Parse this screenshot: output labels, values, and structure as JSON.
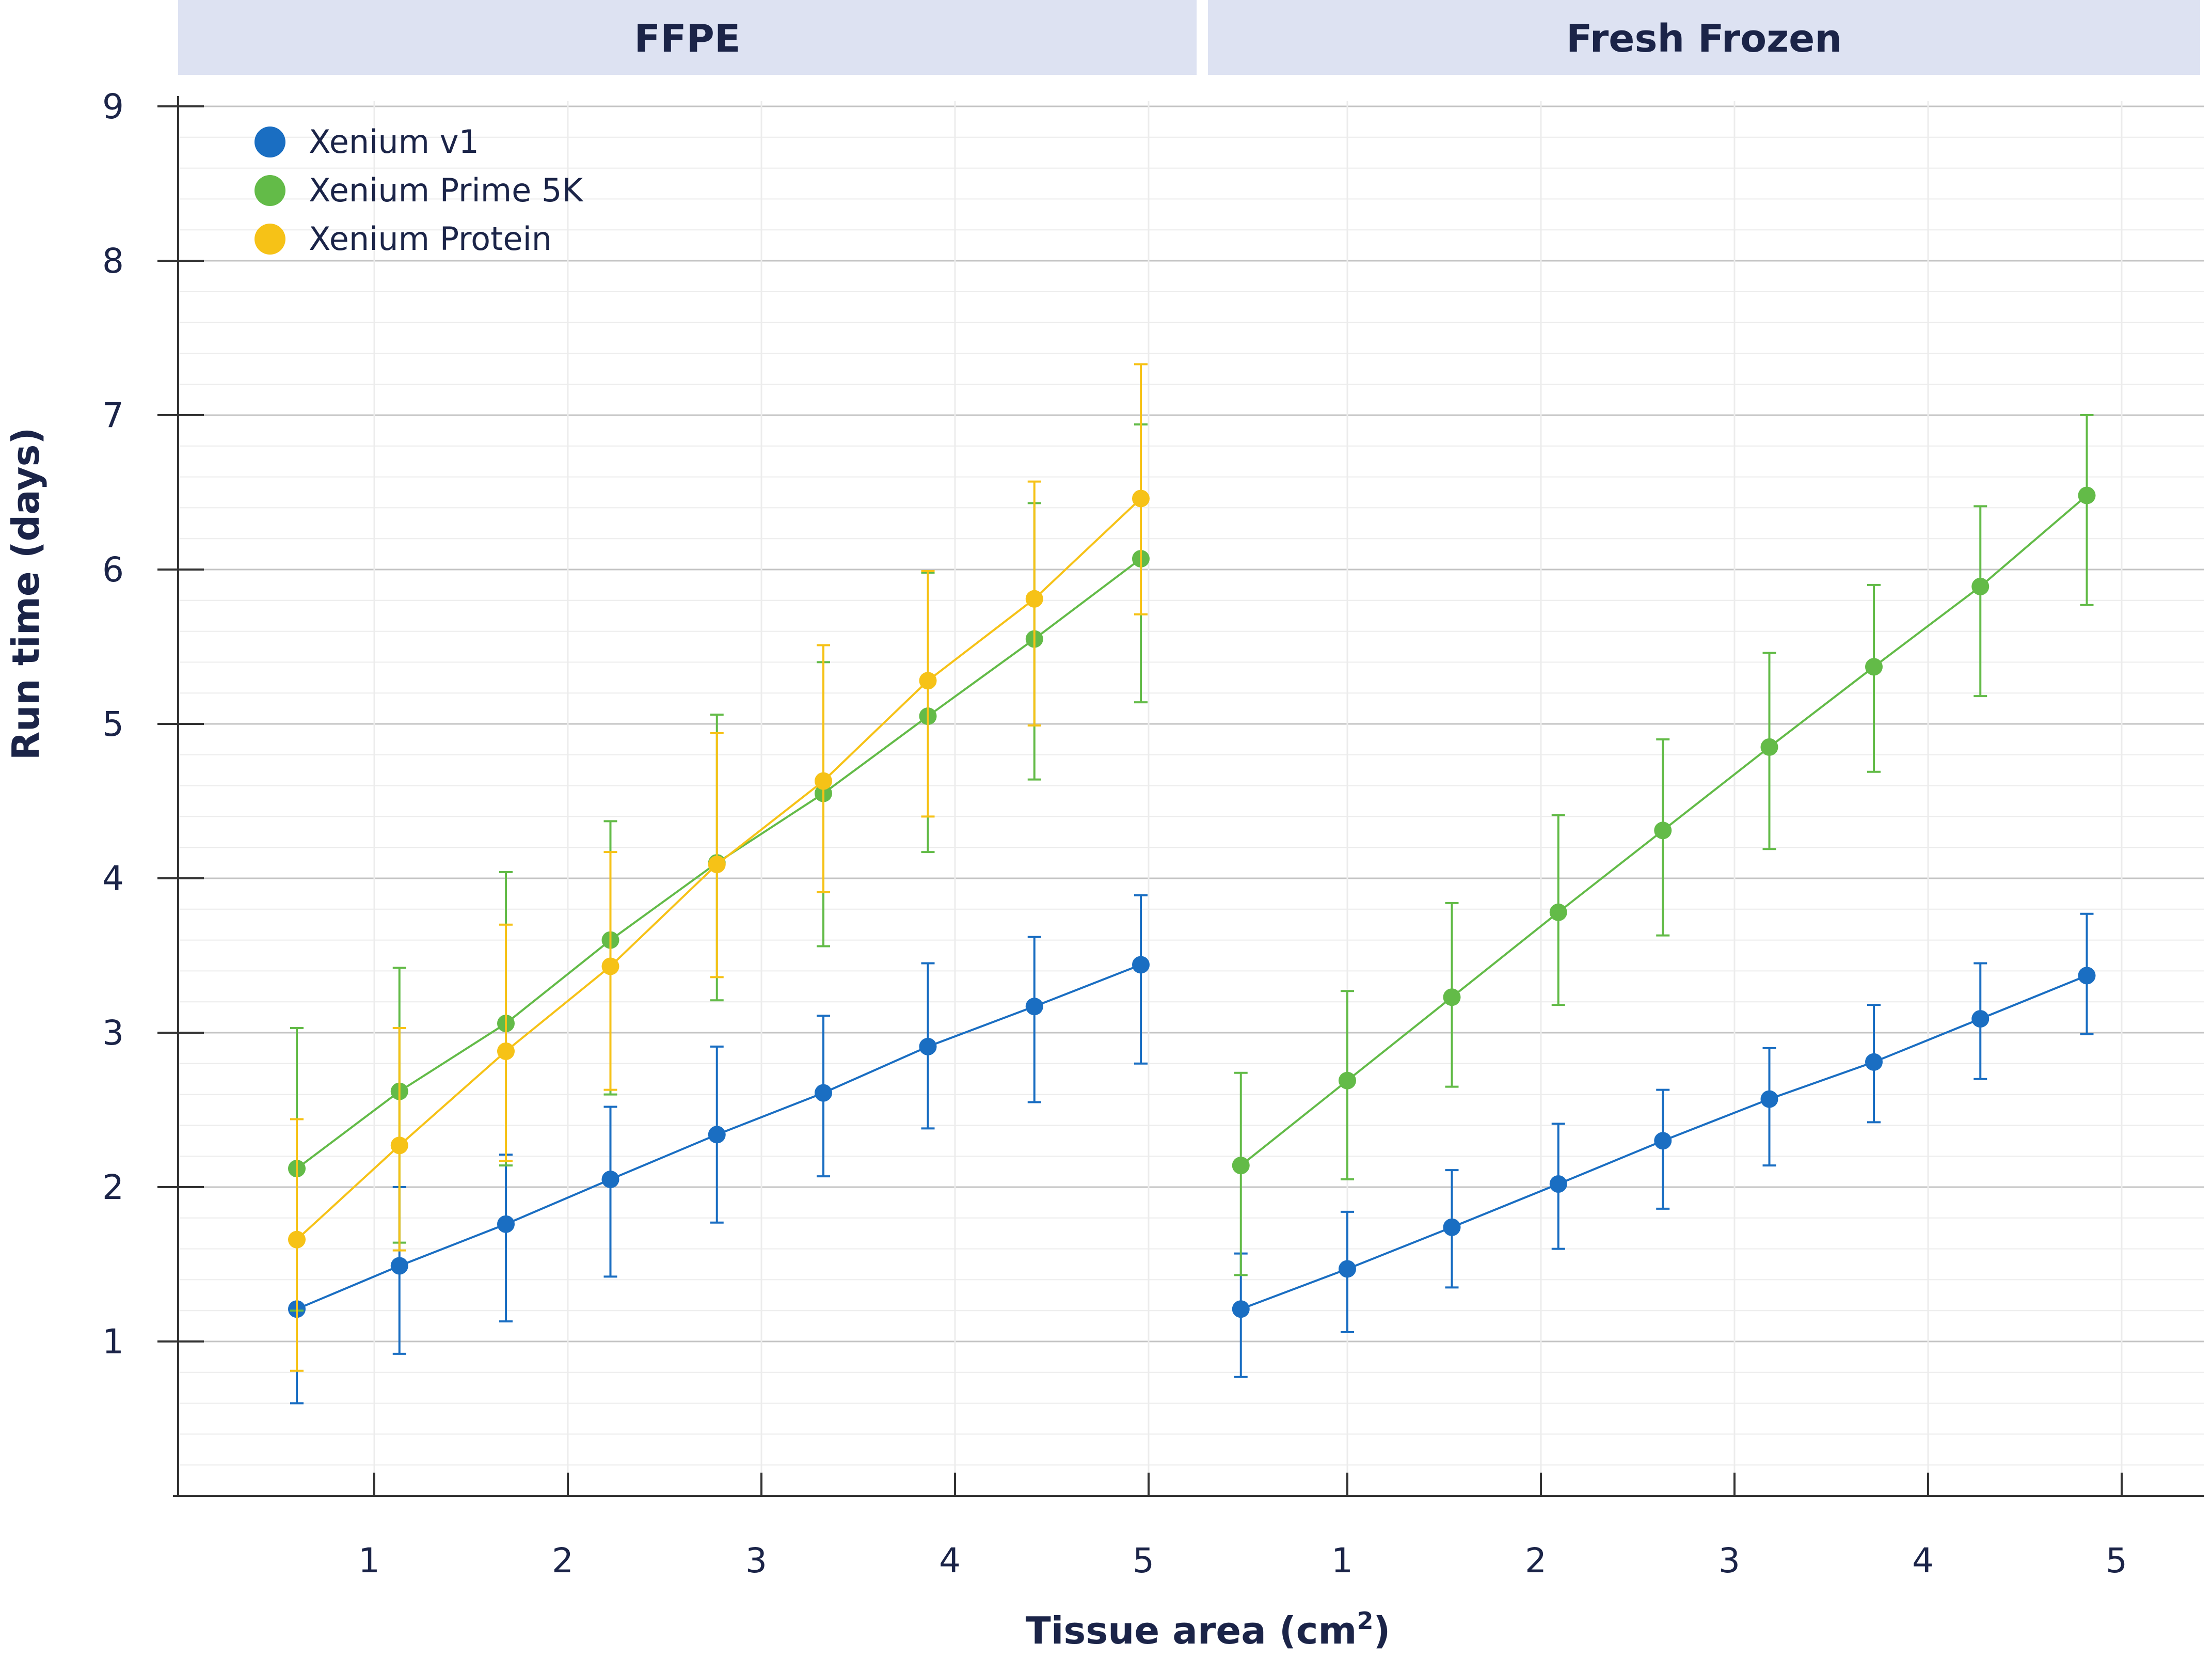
{
  "chart_data": {
    "type": "line",
    "ylabel": "Run time (days)",
    "xlabel": "Tissue area (cm",
    "xlabel_sup": "2",
    "xlabel_end": ")",
    "ylim": [
      0,
      9
    ],
    "yticks": [
      1,
      2,
      3,
      4,
      5,
      6,
      7,
      8,
      9
    ],
    "xticks": [
      1,
      2,
      3,
      4,
      5
    ],
    "grid": true,
    "legend_position": "top-left",
    "colors": {
      "xenium_v1": "#1a6ec2",
      "xenium_prime_5k": "#63bb48",
      "xenium_protein": "#f6c217",
      "panel_header": "#dde2f2",
      "text": "#1b2448"
    },
    "legend": [
      {
        "name": "Xenium v1",
        "color": "#1a6ec2"
      },
      {
        "name": "Xenium Prime 5K",
        "color": "#63bb48"
      },
      {
        "name": "Xenium Protein",
        "color": "#f6c217"
      }
    ],
    "panels": [
      {
        "title": "FFPE",
        "xlim": [
          0,
          5.4
        ],
        "series": [
          {
            "name": "Xenium v1",
            "color": "#1a6ec2",
            "x": [
              0.6,
              1.13,
              1.68,
              2.22,
              2.77,
              3.32,
              3.86,
              4.41,
              4.96
            ],
            "y": [
              1.21,
              1.49,
              1.76,
              2.05,
              2.34,
              2.61,
              2.91,
              3.17,
              3.44
            ],
            "err_low": [
              0.6,
              0.92,
              1.13,
              1.42,
              1.77,
              2.07,
              2.38,
              2.55,
              2.8
            ],
            "err_high": [
              1.2,
              2.0,
              2.21,
              2.52,
              2.91,
              3.11,
              3.45,
              3.62,
              3.89
            ]
          },
          {
            "name": "Xenium Prime 5K",
            "color": "#63bb48",
            "x": [
              0.6,
              1.13,
              1.68,
              2.22,
              2.77,
              3.32,
              3.86,
              4.41,
              4.96
            ],
            "y": [
              2.12,
              2.62,
              3.06,
              3.6,
              4.1,
              4.55,
              5.05,
              5.55,
              6.07
            ],
            "err_low": [
              1.2,
              1.64,
              2.14,
              2.6,
              3.21,
              3.56,
              4.17,
              4.64,
              5.14
            ],
            "err_high": [
              3.03,
              3.42,
              4.04,
              4.37,
              5.06,
              5.4,
              5.98,
              6.43,
              6.94
            ]
          },
          {
            "name": "Xenium Protein",
            "color": "#f6c217",
            "x": [
              0.6,
              1.13,
              1.68,
              2.22,
              2.77,
              3.32,
              3.86,
              4.41,
              4.96
            ],
            "y": [
              1.66,
              2.27,
              2.88,
              3.43,
              4.09,
              4.63,
              5.28,
              5.81,
              6.46
            ],
            "err_low": [
              0.81,
              1.59,
              2.17,
              2.63,
              3.36,
              3.91,
              4.4,
              4.99,
              5.71
            ],
            "err_high": [
              2.44,
              3.03,
              3.7,
              4.17,
              4.94,
              5.51,
              5.99,
              6.57,
              7.33
            ]
          }
        ]
      },
      {
        "title": "Fresh Frozen",
        "xlim": [
          0,
          5.4
        ],
        "series": [
          {
            "name": "Xenium v1",
            "color": "#1a6ec2",
            "x": [
              0.45,
              1.0,
              1.54,
              2.09,
              2.63,
              3.18,
              3.72,
              4.27,
              4.82
            ],
            "y": [
              1.21,
              1.47,
              1.74,
              2.02,
              2.3,
              2.57,
              2.81,
              3.09,
              3.37
            ],
            "err_low": [
              0.77,
              1.06,
              1.35,
              1.6,
              1.86,
              2.14,
              2.42,
              2.7,
              2.99
            ],
            "err_high": [
              1.57,
              1.84,
              2.11,
              2.41,
              2.63,
              2.9,
              3.18,
              3.45,
              3.77
            ]
          },
          {
            "name": "Xenium Prime 5K",
            "color": "#63bb48",
            "x": [
              0.45,
              1.0,
              1.54,
              2.09,
              2.63,
              3.18,
              3.72,
              4.27,
              4.82
            ],
            "y": [
              2.14,
              2.69,
              3.23,
              3.78,
              4.31,
              4.85,
              5.37,
              5.89,
              6.48
            ],
            "err_low": [
              1.43,
              2.05,
              2.65,
              3.18,
              3.63,
              4.19,
              4.69,
              5.18,
              5.77
            ],
            "err_high": [
              2.74,
              3.27,
              3.84,
              4.41,
              4.9,
              5.46,
              5.9,
              6.41,
              7.0
            ]
          }
        ]
      }
    ]
  }
}
